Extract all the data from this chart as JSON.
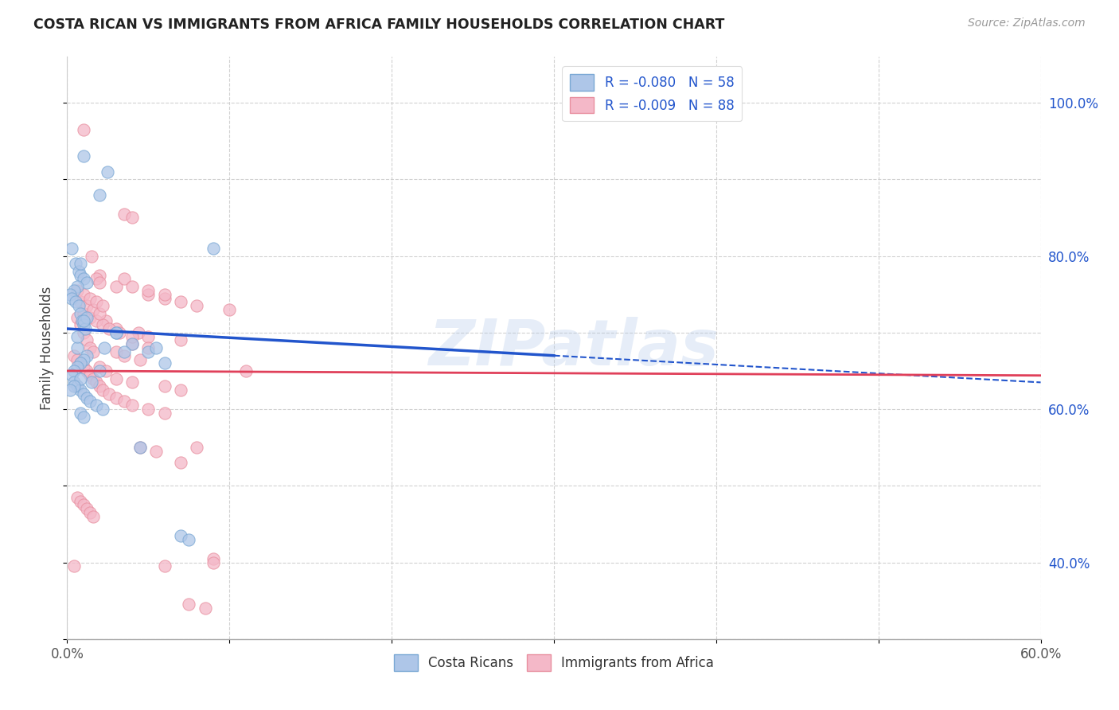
{
  "title": "COSTA RICAN VS IMMIGRANTS FROM AFRICA FAMILY HOUSEHOLDS CORRELATION CHART",
  "source": "Source: ZipAtlas.com",
  "ylabel": "Family Households",
  "y_ticks": [
    40.0,
    60.0,
    80.0,
    100.0
  ],
  "y_tick_labels": [
    "40.0%",
    "60.0%",
    "80.0%",
    "100.0%"
  ],
  "watermark": "ZIPatlas",
  "blue_scatter_x": [
    1.0,
    2.5,
    2.0,
    0.3,
    0.5,
    0.7,
    0.8,
    1.0,
    1.2,
    0.6,
    0.4,
    0.2,
    0.3,
    0.5,
    0.7,
    0.8,
    0.9,
    1.0,
    1.1,
    3.0,
    4.0,
    3.5,
    0.8,
    0.6,
    5.0,
    1.2,
    1.0,
    0.8,
    0.6,
    0.4,
    0.3,
    0.4,
    0.6,
    0.8,
    1.0,
    7.0,
    7.5,
    9.0,
    2.3,
    2.0,
    1.5,
    4.5,
    1.2,
    1.0,
    3.0,
    0.6,
    5.5,
    6.0,
    0.8,
    0.4,
    0.2,
    1.2,
    1.4,
    1.8,
    2.2,
    0.8,
    1.0
  ],
  "blue_scatter_y": [
    93.0,
    91.0,
    88.0,
    81.0,
    79.0,
    78.0,
    77.5,
    77.0,
    76.5,
    76.0,
    75.5,
    75.0,
    74.5,
    74.0,
    73.5,
    72.5,
    71.5,
    71.0,
    70.5,
    70.0,
    68.5,
    67.5,
    79.0,
    68.0,
    67.5,
    67.0,
    66.5,
    66.0,
    65.5,
    65.0,
    64.5,
    63.5,
    63.0,
    62.5,
    62.0,
    43.5,
    43.0,
    81.0,
    68.0,
    65.0,
    63.5,
    55.0,
    72.0,
    71.5,
    70.0,
    69.5,
    68.0,
    66.0,
    64.0,
    63.0,
    62.5,
    61.5,
    61.0,
    60.5,
    60.0,
    59.5,
    59.0
  ],
  "pink_scatter_x": [
    1.0,
    1.5,
    2.0,
    3.0,
    3.5,
    4.0,
    5.0,
    6.0,
    7.0,
    8.0,
    10.0,
    0.6,
    0.8,
    1.0,
    1.2,
    1.4,
    1.6,
    1.8,
    2.0,
    2.4,
    3.0,
    3.5,
    4.0,
    5.0,
    6.0,
    0.4,
    0.6,
    0.8,
    1.0,
    1.2,
    1.4,
    1.6,
    1.8,
    2.0,
    2.2,
    2.6,
    3.0,
    3.5,
    4.0,
    4.4,
    5.0,
    7.0,
    8.0,
    9.0,
    0.4,
    0.6,
    0.8,
    1.0,
    1.2,
    1.4,
    1.6,
    2.0,
    2.4,
    3.0,
    4.0,
    6.0,
    7.0,
    11.0,
    9.0,
    6.0,
    7.5,
    8.5,
    4.5,
    5.5,
    5.0,
    6.0,
    7.0,
    4.0,
    5.0,
    3.0,
    3.5,
    4.5,
    1.0,
    1.4,
    1.8,
    2.2,
    2.6,
    3.2,
    4.0,
    0.8,
    1.2,
    1.6,
    2.0,
    0.6,
    1.0,
    1.4,
    1.8,
    2.2
  ],
  "pink_scatter_y": [
    96.5,
    80.0,
    77.5,
    76.0,
    85.5,
    85.0,
    75.0,
    74.5,
    74.0,
    73.5,
    73.0,
    72.0,
    71.0,
    70.0,
    69.0,
    68.0,
    67.5,
    77.0,
    76.5,
    71.5,
    70.5,
    77.0,
    76.0,
    75.5,
    75.0,
    67.0,
    66.5,
    66.0,
    65.5,
    65.0,
    64.5,
    64.0,
    63.5,
    63.0,
    62.5,
    62.0,
    61.5,
    61.0,
    60.5,
    70.0,
    69.5,
    69.0,
    55.0,
    40.5,
    39.5,
    48.5,
    48.0,
    47.5,
    47.0,
    46.5,
    46.0,
    65.5,
    65.0,
    64.0,
    63.5,
    63.0,
    62.5,
    65.0,
    40.0,
    39.5,
    34.5,
    34.0,
    55.0,
    54.5,
    60.0,
    59.5,
    53.0,
    68.5,
    68.0,
    67.5,
    67.0,
    66.5,
    72.5,
    72.0,
    71.5,
    71.0,
    70.5,
    70.0,
    69.5,
    74.0,
    73.5,
    73.0,
    72.5,
    75.5,
    75.0,
    74.5,
    74.0,
    73.5
  ],
  "blue_line": {
    "x0": 0.0,
    "x1": 60.0,
    "y0": 70.5,
    "y1": 63.5
  },
  "pink_line": {
    "x0": 0.0,
    "x1": 60.0,
    "y0": 65.0,
    "y1": 64.4
  },
  "x_min": 0.0,
  "x_max": 60.0,
  "y_min": 30.0,
  "y_max": 106.0,
  "scatter_alpha": 0.75,
  "scatter_size": 120
}
